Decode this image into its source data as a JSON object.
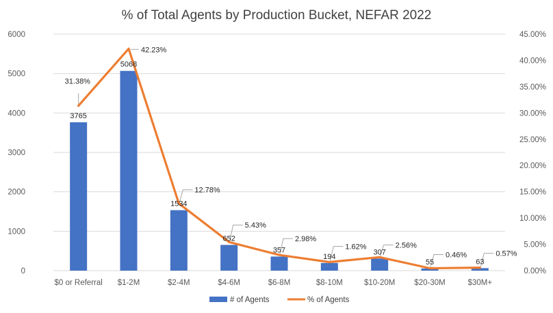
{
  "colors": {
    "bars": "#4472c4",
    "line": "#ed7d31",
    "grid": "#d9d9d9",
    "text": "#595959",
    "leader": "#a6a6a6"
  },
  "chart_data": {
    "type": "bar",
    "title": "% of Total Agents by Production Bucket, NEFAR 2022",
    "categories": [
      "$0 or Referral",
      "$1-2M",
      "$2-4M",
      "$4-6M",
      "$6-8M",
      "$8-10M",
      "$10-20M",
      "$20-30M",
      "$30M+"
    ],
    "series": [
      {
        "name": "# of Agents",
        "type": "bar",
        "axis": "left",
        "values": [
          3765,
          5068,
          1534,
          652,
          357,
          194,
          307,
          55,
          63
        ],
        "labels": [
          "3765",
          "5068",
          "1534",
          "652",
          "357",
          "194",
          "307",
          "55",
          "63"
        ]
      },
      {
        "name": "% of Agents",
        "type": "line",
        "axis": "right",
        "values": [
          31.38,
          42.23,
          12.78,
          5.43,
          2.98,
          1.62,
          2.56,
          0.46,
          0.57
        ],
        "labels": [
          "31.38%",
          "42.23%",
          "12.78%",
          "5.43%",
          "2.98%",
          "1.62%",
          "2.56%",
          "0.46%",
          "0.57%"
        ]
      }
    ],
    "y_left": {
      "min": 0,
      "max": 6000,
      "step": 1000,
      "tick_labels": [
        "0",
        "1000",
        "2000",
        "3000",
        "4000",
        "5000",
        "6000"
      ]
    },
    "y_right": {
      "min": 0,
      "max": 45,
      "step": 5,
      "tick_labels": [
        "0.00%",
        "5.00%",
        "10.00%",
        "15.00%",
        "20.00%",
        "25.00%",
        "30.00%",
        "35.00%",
        "40.00%",
        "45.00%"
      ]
    },
    "grid": true,
    "legend": {
      "position": "bottom",
      "entries": [
        "# of Agents",
        "% of Agents"
      ]
    }
  }
}
